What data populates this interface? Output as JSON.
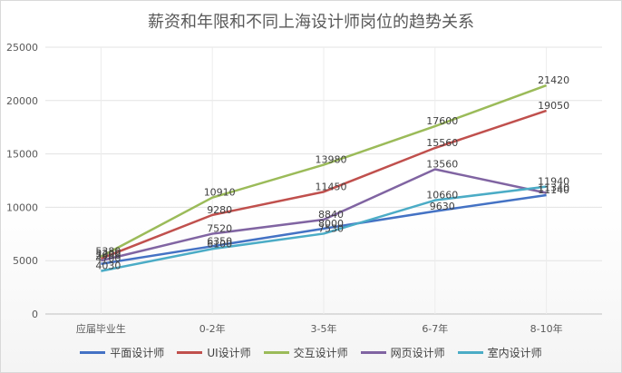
{
  "chart_data": {
    "type": "line",
    "title": "薪资和年限和不同上海设计师岗位的趋势关系",
    "categories": [
      "应届毕业生",
      "0-2年",
      "3-5年",
      "6-7年",
      "8-10年"
    ],
    "ylim": [
      0,
      25000
    ],
    "yticks": [
      0,
      5000,
      10000,
      15000,
      20000,
      25000
    ],
    "grid": true,
    "legend_position": "bottom",
    "series": [
      {
        "name": "平面设计师",
        "color": "#4472c4",
        "values": [
          4700,
          6350,
          8000,
          9630,
          11140
        ],
        "labels": [
          "4700",
          "6350",
          "8000",
          "9630",
          "11140"
        ]
      },
      {
        "name": "UI设计师",
        "color": "#c0504d",
        "values": [
          5200,
          9280,
          11450,
          15560,
          19050
        ],
        "labels": [
          "5200",
          "9280",
          "11450",
          "15560",
          "19050"
        ]
      },
      {
        "name": "交互设计师",
        "color": "#9bbb59",
        "values": [
          5380,
          10910,
          13980,
          17600,
          21420
        ],
        "labels": [
          "5380",
          "10910",
          "13980",
          "17600",
          "21420"
        ]
      },
      {
        "name": "网页设计师",
        "color": "#8064a2",
        "values": [
          5000,
          7520,
          8840,
          13560,
          11340
        ],
        "labels": [
          "5000",
          "7520",
          "8840",
          "13560",
          "11340"
        ]
      },
      {
        "name": "室内设计师",
        "color": "#4bacc6",
        "values": [
          4030,
          6100,
          7530,
          10660,
          11940
        ],
        "labels": [
          "4030",
          "6100",
          "7530",
          "10660",
          "11940"
        ]
      }
    ]
  }
}
